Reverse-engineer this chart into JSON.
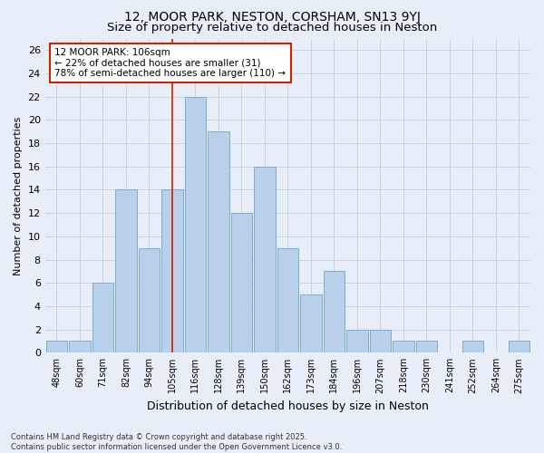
{
  "title": "12, MOOR PARK, NESTON, CORSHAM, SN13 9YJ",
  "subtitle": "Size of property relative to detached houses in Neston",
  "xlabel": "Distribution of detached houses by size in Neston",
  "ylabel": "Number of detached properties",
  "bar_labels": [
    "48sqm",
    "60sqm",
    "71sqm",
    "82sqm",
    "94sqm",
    "105sqm",
    "116sqm",
    "128sqm",
    "139sqm",
    "150sqm",
    "162sqm",
    "173sqm",
    "184sqm",
    "196sqm",
    "207sqm",
    "218sqm",
    "230sqm",
    "241sqm",
    "252sqm",
    "264sqm",
    "275sqm"
  ],
  "bar_values": [
    1,
    1,
    6,
    14,
    9,
    14,
    22,
    19,
    12,
    16,
    9,
    5,
    7,
    2,
    2,
    1,
    1,
    0,
    1,
    0,
    1
  ],
  "bar_color": "#b8d0ea",
  "bar_edge_color": "#7aaed4",
  "vline_x": 5,
  "vline_color": "#cc2200",
  "ylim": [
    0,
    27
  ],
  "yticks": [
    0,
    2,
    4,
    6,
    8,
    10,
    12,
    14,
    16,
    18,
    20,
    22,
    24,
    26
  ],
  "annotation_text": "12 MOOR PARK: 106sqm\n← 22% of detached houses are smaller (31)\n78% of semi-detached houses are larger (110) →",
  "annotation_box_color": "#ffffff",
  "annotation_box_edge": "#cc2200",
  "grid_color": "#c8d4e4",
  "bg_color": "#e8eef8",
  "footer": "Contains HM Land Registry data © Crown copyright and database right 2025.\nContains public sector information licensed under the Open Government Licence v3.0.",
  "title_fontsize": 10,
  "subtitle_fontsize": 9.5,
  "ylabel_fontsize": 8,
  "xlabel_fontsize": 9
}
